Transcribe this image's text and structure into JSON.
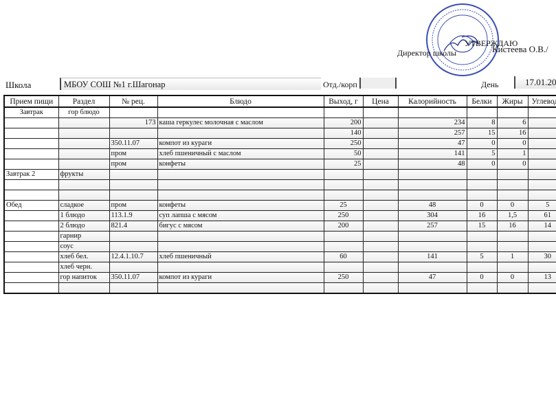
{
  "approval": {
    "approve_label": "УТВЕРЖДАЮ",
    "director_label": "Директор школы",
    "director_name": "Кистеева О.В./",
    "stamp_color": "#3a4fb0"
  },
  "header": {
    "school_label": "Школа",
    "school_value": "МБОУ СОШ №1 г.Шагонар",
    "dept_label": "Отд./корп",
    "dept_value": "",
    "day_label": "День",
    "date_value": "17.01.20"
  },
  "table": {
    "columns": [
      "Прием пищи",
      "Раздел",
      "№ рец.",
      "Блюдо",
      "Выход, г",
      "Цена",
      "Калорийность",
      "Белки",
      "Жиры",
      "Углеводы"
    ],
    "rows": [
      [
        "Завтрак",
        "гор блюдо",
        "",
        "",
        "",
        "",
        "",
        "",
        "",
        ""
      ],
      [
        "",
        "",
        "173",
        "каша геркулес молочная с маслом",
        "200",
        "",
        "234",
        "8",
        "6",
        ""
      ],
      [
        "",
        "",
        "",
        "",
        "140",
        "",
        "257",
        "15",
        "16",
        ""
      ],
      [
        "",
        "",
        "350.11.07",
        "компот из кураги",
        "250",
        "",
        "47",
        "0",
        "0",
        ""
      ],
      [
        "",
        "",
        "пром",
        "хлеб пшеничный с маслом",
        "50",
        "",
        "141",
        "5",
        "1",
        ""
      ],
      [
        "",
        "",
        "пром",
        "конфеты",
        "25",
        "",
        "48",
        "0",
        "0",
        ""
      ],
      [
        "Завтрак 2",
        "фрукты",
        "",
        "",
        "",
        "",
        "",
        "",
        "",
        ""
      ],
      [
        "",
        "",
        "",
        "",
        "",
        "",
        "",
        "",
        "",
        ""
      ],
      [
        "",
        "",
        "",
        "",
        "",
        "",
        "",
        "",
        "",
        ""
      ],
      [
        "Обед",
        "сладкое",
        "пром",
        "конфеты",
        "25",
        "",
        "48",
        "0",
        "0",
        "5"
      ],
      [
        "",
        "1 блюдо",
        "113.1.9",
        "суп лапша с мясом",
        "250",
        "",
        "304",
        "16",
        "1,5",
        "61"
      ],
      [
        "",
        "2 блюдо",
        "821.4",
        "бигус с мясом",
        "200",
        "",
        "257",
        "15",
        "16",
        "14"
      ],
      [
        "",
        "гарнир",
        "",
        "",
        "",
        "",
        "",
        "",
        "",
        ""
      ],
      [
        "",
        "соус",
        "",
        "",
        "",
        "",
        "",
        "",
        "",
        ""
      ],
      [
        "",
        "хлеб бел.",
        "12.4.1.10.7",
        "хлеб пшеничный",
        "60",
        "",
        "141",
        "5",
        "1",
        "30"
      ],
      [
        "",
        "хлеб черн.",
        "",
        "",
        "",
        "",
        "",
        "",
        "",
        ""
      ],
      [
        "",
        "гор напиток",
        "350.11.07",
        "компот из кураги",
        "250",
        "",
        "47",
        "0",
        "0",
        "13"
      ],
      [
        "",
        "",
        "",
        "",
        "",
        "",
        "",
        "",
        "",
        ""
      ]
    ]
  }
}
